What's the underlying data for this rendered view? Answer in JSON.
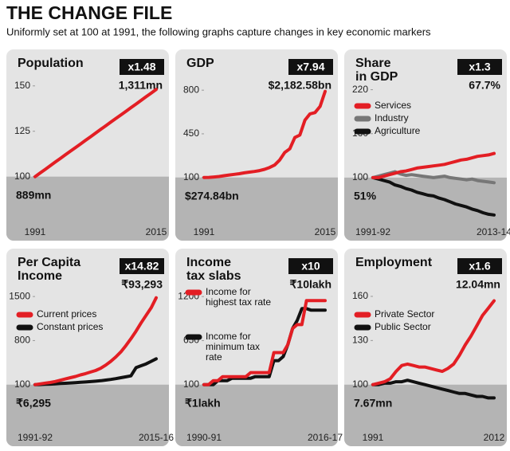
{
  "header": {
    "title": "THE CHANGE FILE",
    "subtitle": "Uniformly set at 100 at 1991, the following graphs capture changes in key economic markers"
  },
  "chart_data": [
    {
      "type": "line",
      "title": [
        "Population"
      ],
      "badge": "x1.48",
      "end_label": "1,311mn",
      "start_label": "889mn",
      "categories": [
        "1991",
        null,
        null,
        null,
        null,
        null,
        null,
        null,
        null,
        null,
        null,
        null,
        null,
        null,
        null,
        null,
        null,
        null,
        null,
        null,
        null,
        null,
        null,
        null,
        "2015"
      ],
      "series": [
        {
          "name": null,
          "color": "#e31e24",
          "values": [
            100,
            102,
            104,
            106,
            108,
            110,
            112,
            114,
            116,
            118,
            120,
            122,
            124,
            126,
            128,
            130,
            132,
            134,
            136,
            138,
            140,
            142,
            144,
            146,
            148
          ]
        }
      ],
      "ylim": [
        70,
        160
      ],
      "yticks": [
        150,
        125,
        100
      ]
    },
    {
      "type": "line",
      "title": [
        "GDP"
      ],
      "badge": "x7.94",
      "end_label": "$2,182.58bn",
      "start_label": "$274.84bn",
      "categories": [
        "1991",
        null,
        null,
        null,
        null,
        null,
        null,
        null,
        null,
        null,
        null,
        null,
        null,
        null,
        null,
        null,
        null,
        null,
        null,
        null,
        null,
        null,
        null,
        null,
        "2015"
      ],
      "series": [
        {
          "name": null,
          "color": "#e31e24",
          "values": [
            100,
            101,
            104,
            108,
            114,
            120,
            125,
            130,
            137,
            143,
            148,
            155,
            165,
            180,
            200,
            240,
            300,
            330,
            420,
            440,
            560,
            610,
            620,
            670,
            790
          ]
        }
      ],
      "ylim": [
        -330,
        980
      ],
      "yticks": [
        800,
        450,
        100
      ]
    },
    {
      "type": "line",
      "title": [
        "Share",
        "in GDP"
      ],
      "badge": "x1.3",
      "end_label": "67.7%",
      "start_label": "51%",
      "categories": [
        "1991-92",
        null,
        null,
        null,
        null,
        null,
        null,
        null,
        null,
        null,
        null,
        null,
        null,
        null,
        null,
        null,
        null,
        null,
        null,
        null,
        null,
        null,
        "2013-14"
      ],
      "series": [
        {
          "name": "Services",
          "color": "#e31e24",
          "values": [
            100,
            100,
            102,
            104,
            106,
            108,
            109,
            111,
            113,
            114,
            115,
            116,
            117,
            118,
            120,
            122,
            124,
            125,
            127,
            129,
            130,
            131,
            133
          ]
        },
        {
          "name": "Industry",
          "color": "#777777",
          "values": [
            100,
            102,
            104,
            106,
            108,
            105,
            103,
            104,
            103,
            102,
            101,
            100,
            101,
            102,
            100,
            99,
            98,
            97,
            98,
            96,
            95,
            94,
            93
          ]
        },
        {
          "name": "Agriculture",
          "color": "#111111",
          "values": [
            100,
            98,
            96,
            94,
            90,
            88,
            85,
            83,
            80,
            78,
            76,
            75,
            72,
            70,
            67,
            64,
            62,
            60,
            57,
            55,
            52,
            50,
            49
          ]
        }
      ],
      "ylim": [
        27,
        250
      ],
      "yticks": [
        220,
        160,
        100
      ]
    },
    {
      "type": "line",
      "title": [
        "Per Capita",
        "Income"
      ],
      "badge": "x14.82",
      "end_label": "₹93,293",
      "start_label": "₹6,295",
      "categories": [
        "1991-92",
        null,
        null,
        null,
        null,
        null,
        null,
        null,
        null,
        null,
        null,
        null,
        null,
        null,
        null,
        null,
        null,
        null,
        null,
        null,
        null,
        null,
        null,
        null,
        "2015-16"
      ],
      "series": [
        {
          "name": "Current prices",
          "color": "#e31e24",
          "values": [
            100,
            112,
            125,
            135,
            150,
            170,
            190,
            210,
            230,
            255,
            275,
            300,
            325,
            360,
            410,
            470,
            540,
            620,
            720,
            830,
            950,
            1080,
            1200,
            1320,
            1480
          ]
        },
        {
          "name": "Constant prices",
          "color": "#111111",
          "values": [
            100,
            102,
            105,
            108,
            112,
            118,
            122,
            127,
            132,
            137,
            142,
            148,
            155,
            162,
            172,
            182,
            195,
            210,
            225,
            240,
            370,
            400,
            430,
            470,
            510
          ]
        }
      ],
      "ylim": [
        -625,
        1970
      ],
      "yticks": [
        1500,
        800,
        100
      ]
    },
    {
      "type": "line",
      "title": [
        "Income",
        "tax slabs"
      ],
      "badge": "x10",
      "end_label": "₹10lakh",
      "start_label": "₹1lakh",
      "categories": [
        "1990-91",
        null,
        null,
        null,
        null,
        null,
        null,
        null,
        null,
        null,
        null,
        null,
        null,
        null,
        null,
        null,
        null,
        null,
        null,
        null,
        null,
        null,
        null,
        null,
        null,
        null,
        "2016-17"
      ],
      "series": [
        {
          "name": "Income for highest tax rate",
          "color": "#e31e24",
          "values": [
            100,
            100,
            150,
            150,
            200,
            200,
            200,
            200,
            200,
            200,
            250,
            250,
            250,
            250,
            250,
            500,
            500,
            500,
            600,
            800,
            850,
            850,
            1150,
            1150,
            1150,
            1150,
            1150
          ]
        },
        {
          "name": "Income for minimum tax rate",
          "color": "#111111",
          "values": [
            100,
            100,
            100,
            150,
            150,
            150,
            180,
            180,
            180,
            180,
            180,
            200,
            200,
            200,
            200,
            400,
            400,
            450,
            600,
            800,
            900,
            1050,
            1050,
            1030,
            1030,
            1030,
            1030
          ]
        }
      ],
      "ylim": [
        -470,
        1570
      ],
      "yticks": [
        1200,
        650,
        100
      ]
    },
    {
      "type": "line",
      "title": [
        "Employment"
      ],
      "badge": "x1.6",
      "end_label": "12.04mn",
      "start_label": "7.67mn",
      "categories": [
        "1991",
        null,
        null,
        null,
        null,
        null,
        null,
        null,
        null,
        null,
        null,
        null,
        null,
        null,
        null,
        null,
        null,
        null,
        null,
        null,
        null,
        "2012"
      ],
      "series": [
        {
          "name": "Private Sector",
          "color": "#e31e24",
          "values": [
            100,
            101,
            102,
            104,
            109,
            113,
            114,
            113,
            112,
            112,
            111,
            110,
            109,
            111,
            114,
            120,
            127,
            133,
            140,
            147,
            152,
            157
          ]
        },
        {
          "name": "Public Sector",
          "color": "#111111",
          "values": [
            100,
            100,
            101,
            101,
            102,
            102,
            103,
            102,
            101,
            100,
            99,
            98,
            97,
            96,
            95,
            94,
            94,
            93,
            92,
            92,
            91,
            91
          ]
        }
      ],
      "ylim": [
        69,
        180
      ],
      "yticks": [
        160,
        130,
        100
      ]
    }
  ]
}
